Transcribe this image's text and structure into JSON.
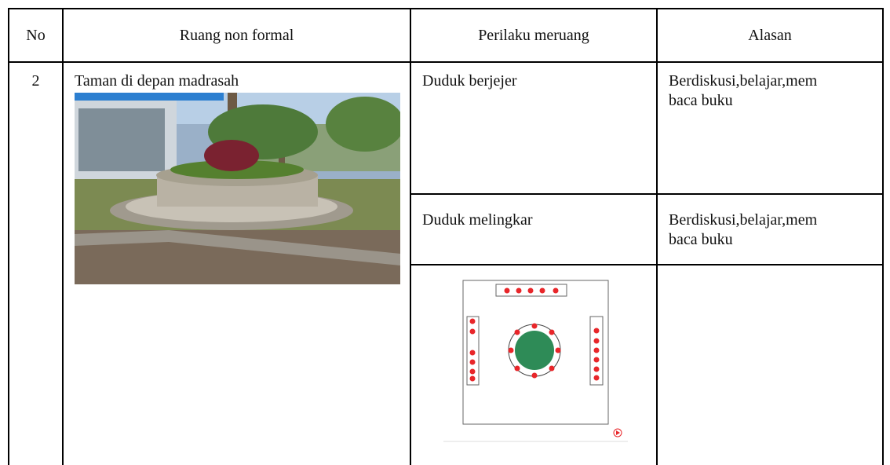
{
  "table": {
    "header": [
      "No",
      "Ruang non formal",
      "Perilaku meruang",
      "Alasan"
    ],
    "rows": [
      {
        "no": "2",
        "ruang": "Taman di depan madrasah",
        "items": [
          {
            "perilaku": "Duduk berjejer",
            "alasan": [
              "Berdiskusi,belajar,mem",
              "baca buku"
            ]
          },
          {
            "perilaku": "Duduk melingkar",
            "alasan": [
              "Berdiskusi,belajar,mem",
              "baca buku"
            ]
          }
        ]
      }
    ]
  }
}
